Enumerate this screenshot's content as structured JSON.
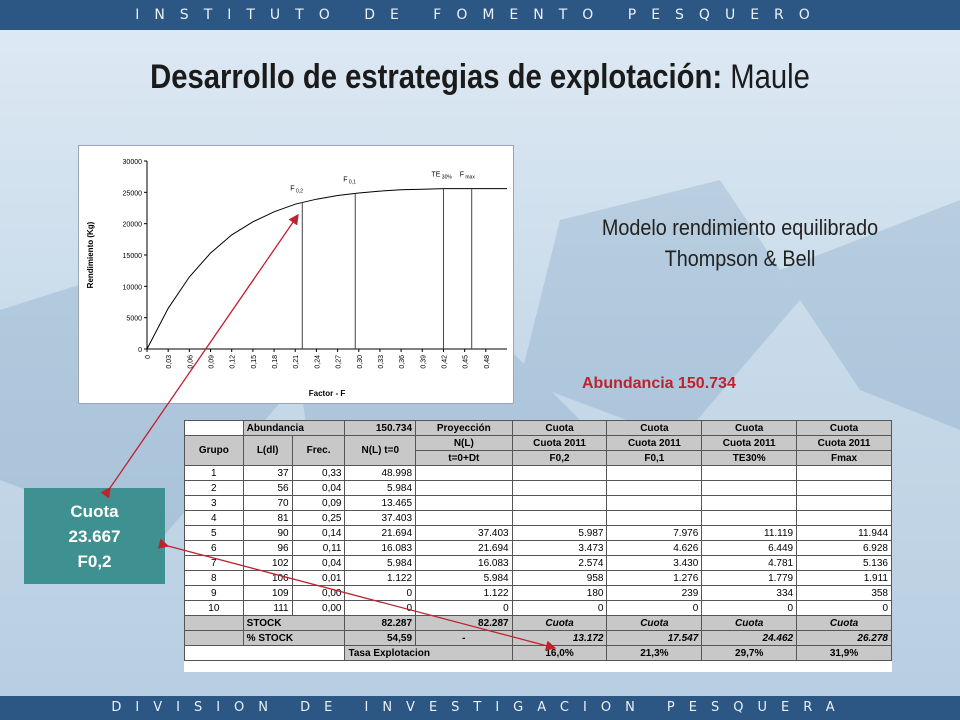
{
  "header_band": "INSTITUTO DE FOMENTO PESQUERO",
  "footer_band": "DIVISION DE INVESTIGACION PESQUERA",
  "title": {
    "bold": "Desarrollo de estrategias de explotación:",
    "normal": " Maule"
  },
  "model_text": {
    "line1": "Modelo rendimiento equilibrado",
    "line2": "Thompson & Bell"
  },
  "abundance_label": "Abundancia 150.734",
  "cuota_box": {
    "line1": "Cuota",
    "line2": "23.667",
    "line3": "F0,2"
  },
  "colors": {
    "band": "#2c5684",
    "accent_red": "#c0212f",
    "teal": "#3f9090"
  },
  "chart_data": {
    "type": "line",
    "xlabel": "Factor - F",
    "ylabel": "Rendimiento (Kg)",
    "ylim": [
      0,
      30000
    ],
    "y_ticks": [
      "0",
      "5000",
      "10000",
      "15000",
      "20000",
      "25000",
      "30000"
    ],
    "x_ticks": [
      "0",
      "0,03",
      "0,06",
      "0,09",
      "0,12",
      "0,15",
      "0,18",
      "0,21",
      "0,24",
      "0,27",
      "0,30",
      "0,33",
      "0,36",
      "0,39",
      "0,42",
      "0,45",
      "0,48"
    ],
    "x": [
      0,
      0.03,
      0.06,
      0.09,
      0.12,
      0.15,
      0.18,
      0.21,
      0.24,
      0.27,
      0.3,
      0.33,
      0.36,
      0.39,
      0.42,
      0.45,
      0.48,
      0.51
    ],
    "y": [
      0,
      6500,
      11500,
      15300,
      18200,
      20300,
      21900,
      23100,
      23900,
      24500,
      24900,
      25200,
      25400,
      25500,
      25600,
      25600,
      25600,
      25600
    ],
    "reference_lines": [
      {
        "label_main": "F",
        "label_sub": "0,2",
        "x": 0.22
      },
      {
        "label_main": "F",
        "label_sub": "0,1",
        "x": 0.295
      },
      {
        "label_main": "TE",
        "label_sub": "30%",
        "x": 0.42
      },
      {
        "label_main": "F",
        "label_sub": "max",
        "x": 0.46
      }
    ],
    "grid": false
  },
  "table": {
    "header1": [
      "Abundancia",
      "150.734",
      "Proyección",
      "Cuota",
      "Cuota",
      "Cuota",
      "Cuota"
    ],
    "header2": [
      "Grupo",
      "L(dl)",
      "Frec.",
      "N(L) t=0",
      "N(L)",
      "Cuota 2011",
      "Cuota 2011",
      "Cuota 2011",
      "Cuota 2011"
    ],
    "header3": [
      "t=0+Dt",
      "F0,2",
      "F0,1",
      "TE30%",
      "Fmax"
    ],
    "rows": [
      [
        "1",
        "37",
        "0,33",
        "48.998",
        "",
        "",
        "",
        "",
        ""
      ],
      [
        "2",
        "56",
        "0,04",
        "5.984",
        "",
        "",
        "",
        "",
        ""
      ],
      [
        "3",
        "70",
        "0,09",
        "13.465",
        "",
        "",
        "",
        "",
        ""
      ],
      [
        "4",
        "81",
        "0,25",
        "37.403",
        "",
        "",
        "",
        "",
        ""
      ],
      [
        "5",
        "90",
        "0,14",
        "21.694",
        "37.403",
        "5.987",
        "7.976",
        "11.119",
        "11.944"
      ],
      [
        "6",
        "96",
        "0,11",
        "16.083",
        "21.694",
        "3.473",
        "4.626",
        "6.449",
        "6.928"
      ],
      [
        "7",
        "102",
        "0,04",
        "5.984",
        "16.083",
        "2.574",
        "3.430",
        "4.781",
        "5.136"
      ],
      [
        "8",
        "106",
        "0,01",
        "1.122",
        "5.984",
        "958",
        "1.276",
        "1.779",
        "1.911"
      ],
      [
        "9",
        "109",
        "0,00",
        "0",
        "1.122",
        "180",
        "239",
        "334",
        "358"
      ],
      [
        "10",
        "111",
        "0,00",
        "0",
        "0",
        "0",
        "0",
        "0",
        "0"
      ]
    ],
    "stock": [
      "STOCK",
      "82.287",
      "82.287",
      "Cuota",
      "Cuota",
      "Cuota",
      "Cuota"
    ],
    "pct_stock": [
      "% STOCK",
      "54,59",
      "-",
      "13.172",
      "17.547",
      "24.462",
      "26.278"
    ],
    "tasa": [
      "Tasa Explotacion",
      "16,0%",
      "21,3%",
      "29,7%",
      "31,9%"
    ]
  }
}
